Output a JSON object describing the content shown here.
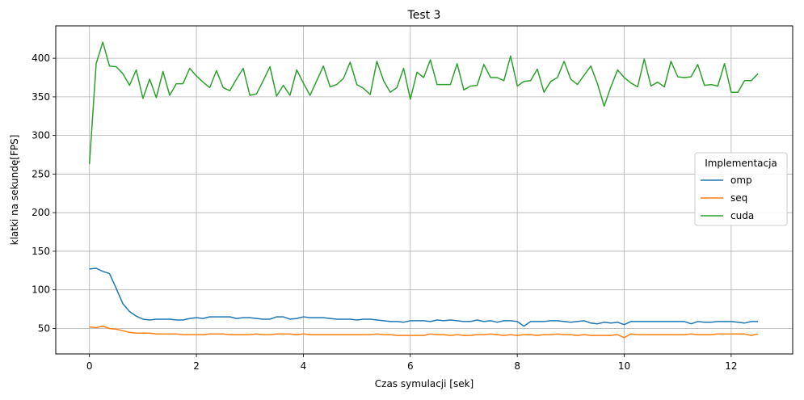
{
  "chart_data": {
    "type": "line",
    "title": "Test 3",
    "xlabel": "Czas symulacji [sek]",
    "ylabel": "klatki na sekundę[FPS]",
    "xlim": [
      -0.63,
      13.15
    ],
    "ylim": [
      17,
      442
    ],
    "xticks": [
      0,
      2,
      4,
      6,
      8,
      10,
      12
    ],
    "yticks": [
      50,
      100,
      150,
      200,
      250,
      300,
      350,
      400
    ],
    "grid": true,
    "legend": {
      "title": "Implementacja",
      "placement": "center-right"
    },
    "x": [
      0.0,
      0.125,
      0.25,
      0.375,
      0.5,
      0.625,
      0.75,
      0.875,
      1.0,
      1.125,
      1.25,
      1.375,
      1.5,
      1.625,
      1.75,
      1.875,
      2.0,
      2.125,
      2.25,
      2.375,
      2.5,
      2.625,
      2.75,
      2.875,
      3.0,
      3.125,
      3.25,
      3.375,
      3.5,
      3.625,
      3.75,
      3.875,
      4.0,
      4.125,
      4.25,
      4.375,
      4.5,
      4.625,
      4.75,
      4.875,
      5.0,
      5.125,
      5.25,
      5.375,
      5.5,
      5.625,
      5.75,
      5.875,
      6.0,
      6.125,
      6.25,
      6.375,
      6.5,
      6.625,
      6.75,
      6.875,
      7.0,
      7.125,
      7.25,
      7.375,
      7.5,
      7.625,
      7.75,
      7.875,
      8.0,
      8.125,
      8.25,
      8.375,
      8.5,
      8.625,
      8.75,
      8.875,
      9.0,
      9.125,
      9.25,
      9.375,
      9.5,
      9.625,
      9.75,
      9.875,
      10.0,
      10.125,
      10.25,
      10.375,
      10.5,
      10.625,
      10.75,
      10.875,
      11.0,
      11.125,
      11.25,
      11.375,
      11.5,
      11.625,
      11.75,
      11.875,
      12.0,
      12.125,
      12.25,
      12.375,
      12.5
    ],
    "series": [
      {
        "name": "omp",
        "color": "#1f77b4",
        "values": [
          127,
          128,
          124,
          121,
          102,
          82,
          72,
          66,
          62,
          61,
          62,
          62,
          62,
          61,
          61,
          63,
          64,
          63,
          65,
          65,
          65,
          65,
          63,
          64,
          64,
          63,
          62,
          62,
          65,
          65,
          62,
          63,
          65,
          64,
          64,
          64,
          63,
          62,
          62,
          62,
          61,
          62,
          62,
          61,
          60,
          59,
          59,
          58,
          60,
          60,
          60,
          59,
          61,
          60,
          61,
          60,
          59,
          59,
          61,
          59,
          60,
          58,
          60,
          60,
          59,
          53,
          59,
          59,
          59,
          60,
          60,
          59,
          58,
          59,
          60,
          57,
          56,
          58,
          57,
          58,
          55,
          59,
          59,
          59,
          59,
          59,
          59,
          59,
          59,
          59,
          56,
          59,
          58,
          58,
          59,
          59,
          59,
          58,
          57,
          59,
          59
        ]
      },
      {
        "name": "seq",
        "color": "#ff7f0e",
        "values": [
          52,
          51,
          53,
          50,
          49,
          47,
          45,
          44,
          44,
          44,
          43,
          43,
          43,
          43,
          42,
          42,
          42,
          42,
          43,
          43,
          43,
          42,
          42,
          42,
          42,
          43,
          42,
          42,
          43,
          43,
          43,
          42,
          43,
          42,
          42,
          42,
          42,
          42,
          42,
          42,
          42,
          42,
          42,
          43,
          42,
          42,
          41,
          41,
          41,
          41,
          41,
          43,
          42,
          42,
          41,
          42,
          41,
          41,
          42,
          42,
          43,
          42,
          41,
          42,
          41,
          42,
          42,
          41,
          42,
          42,
          43,
          42,
          42,
          41,
          42,
          41,
          41,
          41,
          41,
          42,
          38,
          43,
          42,
          42,
          42,
          42,
          42,
          42,
          42,
          42,
          43,
          42,
          42,
          42,
          43,
          43,
          43,
          43,
          43,
          41,
          43
        ]
      },
      {
        "name": "cuda",
        "color": "#2ca02c",
        "values": [
          263,
          393,
          421,
          390,
          389,
          380,
          365,
          385,
          348,
          373,
          349,
          383,
          352,
          367,
          367,
          387,
          377,
          369,
          362,
          384,
          362,
          358,
          373,
          387,
          352,
          354,
          371,
          389,
          351,
          365,
          352,
          385,
          368,
          352,
          371,
          390,
          363,
          366,
          374,
          395,
          366,
          361,
          353,
          396,
          371,
          356,
          362,
          387,
          347,
          382,
          375,
          398,
          366,
          366,
          366,
          393,
          359,
          364,
          365,
          392,
          375,
          375,
          371,
          403,
          364,
          370,
          371,
          386,
          356,
          370,
          375,
          396,
          373,
          366,
          378,
          390,
          367,
          338,
          363,
          385,
          375,
          368,
          363,
          399,
          364,
          369,
          363,
          396,
          376,
          375,
          376,
          392,
          365,
          366,
          364,
          393,
          356,
          356,
          371,
          371,
          380
        ]
      }
    ]
  }
}
